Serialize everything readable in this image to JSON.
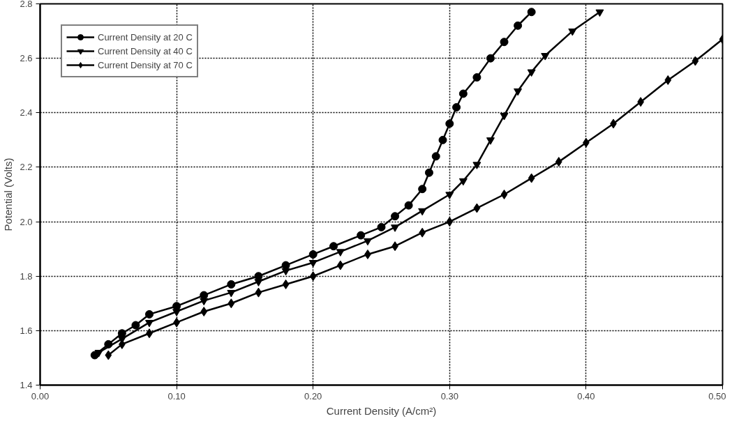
{
  "chart_data": {
    "type": "line",
    "xlabel": "Current Density (A/cm²)",
    "ylabel": "Potential (Volts)",
    "xlim": [
      0,
      0.5
    ],
    "ylim": [
      1.4,
      2.8
    ],
    "xticks": [
      {
        "value": 0,
        "label": "0.00"
      },
      {
        "value": 0.1,
        "label": "0.10"
      },
      {
        "value": 0.2,
        "label": "0.20"
      },
      {
        "value": 0.3,
        "label": "0.30"
      },
      {
        "value": 0.4,
        "label": "0.40"
      },
      {
        "value": 0.5,
        "label": "0.50"
      }
    ],
    "yticks": [
      1.4,
      1.6,
      1.8,
      {
        "value": 2.0,
        "label": "2.0"
      },
      2.2,
      2.4,
      2.6,
      2.8
    ],
    "grid": true,
    "legend": "top left",
    "line_style": "solid",
    "series": [
      {
        "name": "Current Density at 20 C",
        "color": "#000000",
        "marker": "circle",
        "x": [
          0.04,
          0.05,
          0.06,
          0.07,
          0.08,
          0.1,
          0.12,
          0.14,
          0.16,
          0.18,
          0.2,
          0.215,
          0.235,
          0.25,
          0.26,
          0.27,
          0.28,
          0.285,
          0.29,
          0.295,
          0.3,
          0.305,
          0.31,
          0.32,
          0.33,
          0.34,
          0.35,
          0.36
        ],
        "values": [
          1.51,
          1.55,
          1.59,
          1.62,
          1.66,
          1.69,
          1.73,
          1.77,
          1.8,
          1.84,
          1.88,
          1.91,
          1.95,
          1.98,
          2.02,
          2.06,
          2.12,
          2.18,
          2.24,
          2.3,
          2.36,
          2.42,
          2.47,
          2.53,
          2.6,
          2.66,
          2.72,
          2.77
        ]
      },
      {
        "name": "Current Density at 40 C",
        "color": "#000000",
        "marker": "triangle",
        "x": [
          0.043,
          0.06,
          0.08,
          0.1,
          0.12,
          0.14,
          0.16,
          0.18,
          0.2,
          0.22,
          0.24,
          0.26,
          0.28,
          0.3,
          0.31,
          0.32,
          0.33,
          0.34,
          0.35,
          0.36,
          0.37,
          0.39,
          0.41
        ],
        "values": [
          1.52,
          1.57,
          1.63,
          1.67,
          1.71,
          1.74,
          1.78,
          1.82,
          1.85,
          1.89,
          1.93,
          1.98,
          2.04,
          2.1,
          2.15,
          2.21,
          2.3,
          2.39,
          2.48,
          2.55,
          2.61,
          2.7,
          2.77
        ]
      },
      {
        "name": "Current Density at 70 C",
        "color": "#000000",
        "marker": "diamond",
        "x": [
          0.05,
          0.06,
          0.08,
          0.1,
          0.12,
          0.14,
          0.16,
          0.18,
          0.2,
          0.22,
          0.24,
          0.26,
          0.28,
          0.3,
          0.32,
          0.34,
          0.36,
          0.38,
          0.4,
          0.42,
          0.44,
          0.46,
          0.48,
          0.5
        ],
        "values": [
          1.51,
          1.55,
          1.59,
          1.63,
          1.67,
          1.7,
          1.74,
          1.77,
          1.8,
          1.84,
          1.88,
          1.91,
          1.96,
          2.0,
          2.05,
          2.1,
          2.16,
          2.22,
          2.29,
          2.36,
          2.44,
          2.52,
          2.59,
          2.67
        ]
      }
    ]
  }
}
